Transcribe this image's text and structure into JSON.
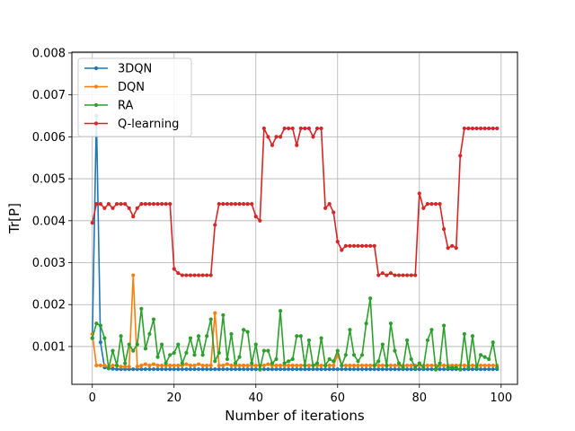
{
  "chart_data": {
    "type": "line",
    "title": "",
    "xlabel": "Number of iterations",
    "ylabel": "Tr[P]",
    "xlim": [
      -5,
      104
    ],
    "ylim": [
      0.0001,
      0.00802
    ],
    "x_ticks": [
      0,
      20,
      40,
      60,
      80,
      100
    ],
    "y_ticks": [
      0.001,
      0.002,
      0.003,
      0.004,
      0.005,
      0.006,
      0.007,
      0.008
    ],
    "x_tick_labels": [
      "0",
      "20",
      "40",
      "60",
      "80",
      "100"
    ],
    "y_tick_labels": [
      "0.001",
      "0.002",
      "0.003",
      "0.004",
      "0.005",
      "0.006",
      "0.007",
      "0.008"
    ],
    "grid": true,
    "legend_position": "top-left",
    "x": [
      0,
      1,
      2,
      3,
      4,
      5,
      6,
      7,
      8,
      9,
      10,
      11,
      12,
      13,
      14,
      15,
      16,
      17,
      18,
      19,
      20,
      21,
      22,
      23,
      24,
      25,
      26,
      27,
      28,
      29,
      30,
      31,
      32,
      33,
      34,
      35,
      36,
      37,
      38,
      39,
      40,
      41,
      42,
      43,
      44,
      45,
      46,
      47,
      48,
      49,
      50,
      51,
      52,
      53,
      54,
      55,
      56,
      57,
      58,
      59,
      60,
      61,
      62,
      63,
      64,
      65,
      66,
      67,
      68,
      69,
      70,
      71,
      72,
      73,
      74,
      75,
      76,
      77,
      78,
      79,
      80,
      81,
      82,
      83,
      84,
      85,
      86,
      87,
      88,
      89,
      90,
      91,
      92,
      93,
      94,
      95,
      96,
      97,
      98,
      99
    ],
    "series": [
      {
        "name": "3DQN",
        "color": "#1f77b4",
        "values": [
          0.0012,
          0.0065,
          0.0011,
          0.0005,
          0.00048,
          0.00047,
          0.00046,
          0.00046,
          0.00046,
          0.00046,
          0.00046,
          0.00046,
          0.00046,
          0.00046,
          0.00046,
          0.00046,
          0.00046,
          0.00046,
          0.00046,
          0.00046,
          0.00046,
          0.00046,
          0.00046,
          0.00046,
          0.00046,
          0.00046,
          0.00046,
          0.00046,
          0.00046,
          0.00046,
          0.00046,
          0.00046,
          0.00046,
          0.00046,
          0.00046,
          0.00046,
          0.00046,
          0.00046,
          0.00046,
          0.00046,
          0.00046,
          0.00046,
          0.00046,
          0.00046,
          0.00046,
          0.00046,
          0.00046,
          0.00046,
          0.00046,
          0.00046,
          0.00046,
          0.00046,
          0.00046,
          0.00046,
          0.00046,
          0.00046,
          0.00046,
          0.00046,
          0.00046,
          0.00046,
          0.00046,
          0.00046,
          0.00046,
          0.00046,
          0.00046,
          0.00046,
          0.00046,
          0.00046,
          0.00046,
          0.00046,
          0.00046,
          0.00046,
          0.00046,
          0.00046,
          0.00046,
          0.00046,
          0.00046,
          0.00046,
          0.00046,
          0.00046,
          0.00046,
          0.00046,
          0.00046,
          0.00046,
          0.00046,
          0.00046,
          0.00046,
          0.00046,
          0.00046,
          0.00046,
          0.00046,
          0.00046,
          0.00046,
          0.00046,
          0.00046,
          0.00046,
          0.00046,
          0.00046,
          0.00046,
          0.00046
        ]
      },
      {
        "name": "DQN",
        "color": "#ff7f0e",
        "values": [
          0.0013,
          0.00055,
          0.00055,
          0.00055,
          0.00052,
          0.00055,
          0.00055,
          0.00052,
          0.00052,
          0.00052,
          0.0027,
          0.00052,
          0.00055,
          0.00058,
          0.00055,
          0.00058,
          0.00055,
          0.00055,
          0.00055,
          0.00055,
          0.00055,
          0.00055,
          0.00055,
          0.00058,
          0.00055,
          0.00055,
          0.00058,
          0.00055,
          0.00055,
          0.00055,
          0.0018,
          0.00055,
          0.00055,
          0.00058,
          0.00055,
          0.00055,
          0.00055,
          0.00055,
          0.00055,
          0.00055,
          0.00055,
          0.00055,
          0.00055,
          0.00058,
          0.00055,
          0.00055,
          0.00055,
          0.00055,
          0.00055,
          0.00055,
          0.00055,
          0.00055,
          0.00055,
          0.00055,
          0.00055,
          0.00055,
          0.00055,
          0.00055,
          0.00055,
          0.00055,
          0.0008,
          0.00055,
          0.00055,
          0.00055,
          0.00055,
          0.00055,
          0.00055,
          0.00055,
          0.00055,
          0.00055,
          0.00055,
          0.00055,
          0.00055,
          0.00055,
          0.00055,
          0.00055,
          0.00055,
          0.00055,
          0.00055,
          0.00055,
          0.00055,
          0.00055,
          0.00055,
          0.00055,
          0.00055,
          0.00055,
          0.00055,
          0.00055,
          0.00055,
          0.00055,
          0.00055,
          0.00055,
          0.00055,
          0.00055,
          0.00055,
          0.00055,
          0.00055,
          0.00055,
          0.00055,
          0.00055
        ]
      },
      {
        "name": "RA",
        "color": "#2ca02c",
        "values": [
          0.0012,
          0.00155,
          0.0015,
          0.0012,
          0.00048,
          0.0009,
          0.00055,
          0.00125,
          0.0006,
          0.00105,
          0.0009,
          0.00105,
          0.0019,
          0.00095,
          0.0013,
          0.00165,
          0.00075,
          0.00105,
          0.0006,
          0.0008,
          0.00085,
          0.00105,
          0.0006,
          0.00085,
          0.0012,
          0.0008,
          0.00125,
          0.0008,
          0.00125,
          0.00165,
          0.00065,
          0.00085,
          0.00175,
          0.0007,
          0.0013,
          0.0006,
          0.00075,
          0.0014,
          0.00135,
          0.0006,
          0.00105,
          0.00045,
          0.0009,
          0.0009,
          0.0006,
          0.0007,
          0.00185,
          0.0006,
          0.00065,
          0.0007,
          0.00125,
          0.00125,
          0.00055,
          0.00115,
          0.00055,
          0.0006,
          0.0012,
          0.00055,
          0.0007,
          0.00065,
          0.0009,
          0.00055,
          0.0008,
          0.0014,
          0.0008,
          0.00065,
          0.0008,
          0.00155,
          0.00215,
          0.00055,
          0.00065,
          0.00105,
          0.00055,
          0.00155,
          0.0009,
          0.0006,
          0.0005,
          0.00115,
          0.0007,
          0.0005,
          0.0006,
          0.0005,
          0.00115,
          0.0014,
          0.00045,
          0.0006,
          0.0015,
          0.0005,
          0.0005,
          0.0005,
          0.00045,
          0.0013,
          0.0005,
          0.00125,
          0.0005,
          0.0008,
          0.00075,
          0.0007,
          0.0011,
          0.0005
        ]
      },
      {
        "name": "Q-learning",
        "color": "#d62728",
        "values": [
          0.00395,
          0.0044,
          0.0044,
          0.0043,
          0.0044,
          0.0043,
          0.0044,
          0.0044,
          0.0044,
          0.0043,
          0.0041,
          0.0043,
          0.0044,
          0.0044,
          0.0044,
          0.0044,
          0.0044,
          0.0044,
          0.0044,
          0.0044,
          0.00285,
          0.00275,
          0.0027,
          0.0027,
          0.0027,
          0.0027,
          0.0027,
          0.0027,
          0.0027,
          0.0027,
          0.0039,
          0.0044,
          0.0044,
          0.0044,
          0.0044,
          0.0044,
          0.0044,
          0.0044,
          0.0044,
          0.0044,
          0.0041,
          0.004,
          0.0062,
          0.006,
          0.0058,
          0.006,
          0.006,
          0.0062,
          0.0062,
          0.0062,
          0.0058,
          0.0062,
          0.0062,
          0.0062,
          0.006,
          0.0062,
          0.0062,
          0.0043,
          0.0044,
          0.0042,
          0.0035,
          0.0033,
          0.0034,
          0.0034,
          0.0034,
          0.0034,
          0.0034,
          0.0034,
          0.0034,
          0.0034,
          0.0027,
          0.00275,
          0.0027,
          0.00275,
          0.0027,
          0.0027,
          0.0027,
          0.0027,
          0.0027,
          0.0027,
          0.00465,
          0.0043,
          0.0044,
          0.0044,
          0.0044,
          0.0044,
          0.0038,
          0.00335,
          0.0034,
          0.00335,
          0.00555,
          0.0062,
          0.0062,
          0.0062,
          0.0062,
          0.0062,
          0.0062,
          0.0062,
          0.0062,
          0.0062
        ]
      }
    ]
  }
}
